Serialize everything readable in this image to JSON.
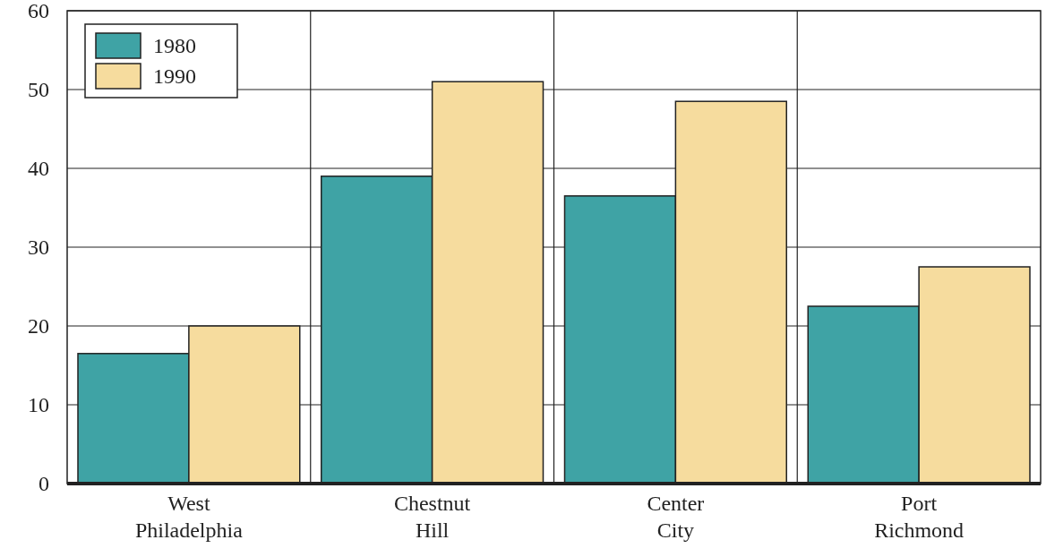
{
  "chart_data": {
    "type": "bar",
    "categories": [
      "West Philadelphia",
      "Chestnut Hill",
      "Center City",
      "Port Richmond"
    ],
    "series": [
      {
        "name": "1980",
        "color": "#3fa3a5",
        "values": [
          16.5,
          39,
          36.5,
          22.5
        ]
      },
      {
        "name": "1990",
        "color": "#f6dc9e",
        "values": [
          20,
          51,
          48.5,
          27.5
        ]
      }
    ],
    "ylim": [
      0,
      60
    ],
    "yticks": [
      0,
      10,
      20,
      30,
      40,
      50,
      60
    ],
    "grid": true,
    "legend": "top left"
  }
}
